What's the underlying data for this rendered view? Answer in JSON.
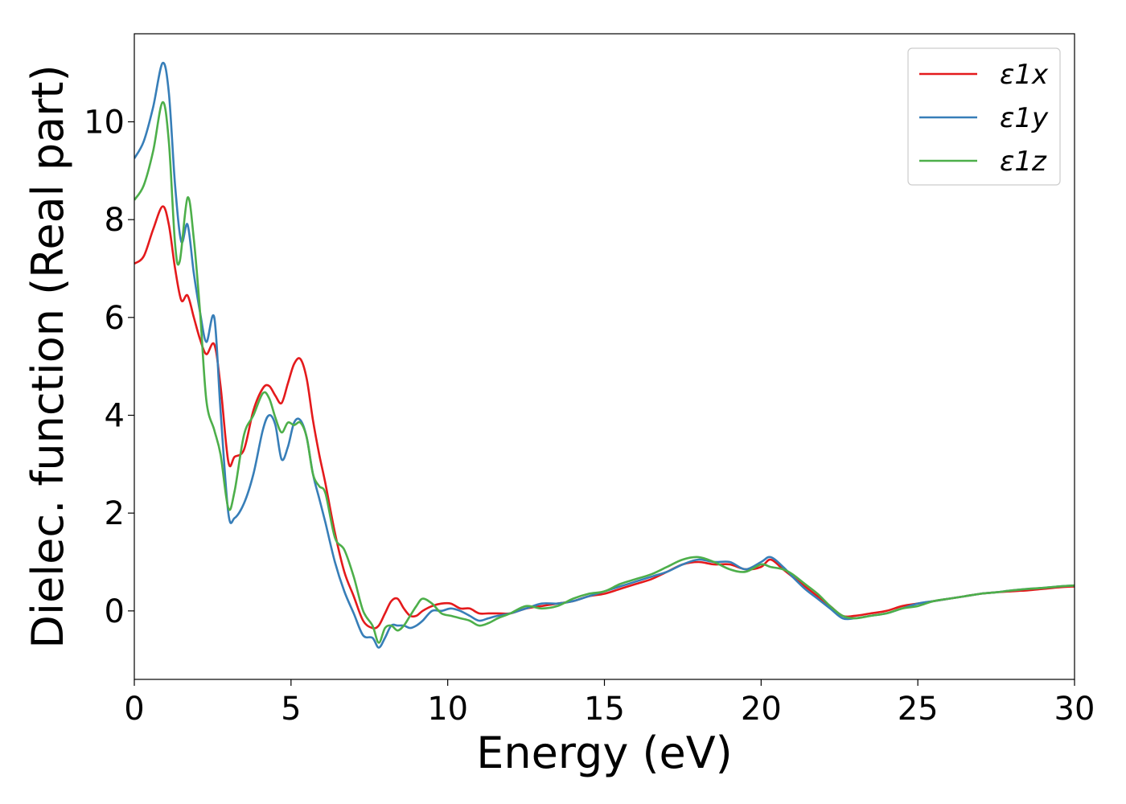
{
  "chart_data": {
    "type": "line",
    "xlabel": "Energy (eV)",
    "ylabel": "Dielec. function (Real part)",
    "xlim": [
      0,
      30
    ],
    "ylim": [
      -1.4,
      11.8
    ],
    "xticks": [
      0,
      5,
      10,
      15,
      20,
      25,
      30
    ],
    "yticks": [
      0,
      2,
      4,
      6,
      8,
      10
    ],
    "grid": false,
    "legend_position": "top-right",
    "series": [
      {
        "name": "ε1x",
        "color": "#e41a1c",
        "x": [
          0,
          0.3,
          0.6,
          0.9,
          1.1,
          1.3,
          1.5,
          1.7,
          1.9,
          2.1,
          2.3,
          2.55,
          2.75,
          3.0,
          3.2,
          3.5,
          3.8,
          4.1,
          4.3,
          4.5,
          4.7,
          4.9,
          5.1,
          5.3,
          5.5,
          5.7,
          5.9,
          6.1,
          6.4,
          6.7,
          7.0,
          7.3,
          7.6,
          7.8,
          8.0,
          8.2,
          8.4,
          8.6,
          8.8,
          9.0,
          9.2,
          9.5,
          9.8,
          10.1,
          10.4,
          10.7,
          11.0,
          11.3,
          11.6,
          12.0,
          12.5,
          13.0,
          13.5,
          14.0,
          14.5,
          15.0,
          15.5,
          16.0,
          16.5,
          17.0,
          17.5,
          18.0,
          18.5,
          19.0,
          19.5,
          20.0,
          20.3,
          20.7,
          21.0,
          21.4,
          21.8,
          22.2,
          22.6,
          23.0,
          23.5,
          24.0,
          24.5,
          25.0,
          25.5,
          26.0,
          26.5,
          27.0,
          27.5,
          28.0,
          28.5,
          29.0,
          29.5,
          30.0
        ],
        "y": [
          7.1,
          7.25,
          7.8,
          8.27,
          7.9,
          7.0,
          6.35,
          6.45,
          6.0,
          5.55,
          5.25,
          5.45,
          4.6,
          3.05,
          3.15,
          3.3,
          4.1,
          4.55,
          4.6,
          4.4,
          4.25,
          4.65,
          5.05,
          5.15,
          4.75,
          3.9,
          3.2,
          2.6,
          1.6,
          0.8,
          0.3,
          -0.2,
          -0.35,
          -0.3,
          -0.05,
          0.2,
          0.25,
          0.05,
          -0.1,
          -0.1,
          0.0,
          0.1,
          0.15,
          0.15,
          0.05,
          0.05,
          -0.05,
          -0.05,
          -0.05,
          -0.05,
          0.05,
          0.1,
          0.15,
          0.2,
          0.3,
          0.35,
          0.45,
          0.55,
          0.65,
          0.8,
          0.95,
          1.0,
          0.95,
          0.95,
          0.85,
          0.9,
          1.05,
          0.85,
          0.7,
          0.5,
          0.3,
          0.1,
          -0.1,
          -0.1,
          -0.05,
          0.0,
          0.1,
          0.15,
          0.2,
          0.25,
          0.3,
          0.35,
          0.38,
          0.4,
          0.42,
          0.45,
          0.48,
          0.5
        ]
      },
      {
        "name": "ε1y",
        "color": "#377eb8",
        "x": [
          0,
          0.3,
          0.6,
          0.9,
          1.1,
          1.3,
          1.5,
          1.7,
          1.9,
          2.1,
          2.3,
          2.55,
          2.75,
          3.0,
          3.2,
          3.5,
          3.8,
          4.1,
          4.3,
          4.5,
          4.7,
          4.9,
          5.1,
          5.3,
          5.5,
          5.7,
          5.9,
          6.1,
          6.4,
          6.7,
          7.0,
          7.3,
          7.6,
          7.8,
          8.0,
          8.2,
          8.4,
          8.6,
          8.8,
          9.0,
          9.2,
          9.5,
          9.8,
          10.1,
          10.4,
          10.7,
          11.0,
          11.3,
          11.6,
          12.0,
          12.5,
          13.0,
          13.5,
          14.0,
          14.5,
          15.0,
          15.5,
          16.0,
          16.5,
          17.0,
          17.5,
          18.0,
          18.5,
          19.0,
          19.5,
          20.0,
          20.3,
          20.7,
          21.0,
          21.4,
          21.8,
          22.2,
          22.6,
          23.0,
          23.5,
          24.0,
          24.5,
          25.0,
          25.5,
          26.0,
          26.5,
          27.0,
          27.5,
          28.0,
          28.5,
          29.0,
          29.5,
          30.0
        ],
        "y": [
          9.25,
          9.6,
          10.3,
          11.2,
          10.6,
          8.7,
          7.55,
          7.9,
          6.9,
          6.1,
          5.5,
          6.0,
          4.1,
          2.0,
          1.9,
          2.2,
          2.8,
          3.7,
          4.0,
          3.8,
          3.1,
          3.35,
          3.85,
          3.9,
          3.55,
          2.8,
          2.3,
          1.8,
          1.0,
          0.4,
          -0.05,
          -0.5,
          -0.55,
          -0.75,
          -0.55,
          -0.3,
          -0.3,
          -0.3,
          -0.35,
          -0.3,
          -0.2,
          0.0,
          0.0,
          0.05,
          0.0,
          -0.1,
          -0.2,
          -0.15,
          -0.1,
          -0.05,
          0.05,
          0.15,
          0.15,
          0.2,
          0.3,
          0.4,
          0.5,
          0.6,
          0.7,
          0.8,
          0.95,
          1.05,
          1.0,
          1.0,
          0.85,
          1.0,
          1.1,
          0.9,
          0.7,
          0.45,
          0.25,
          0.05,
          -0.15,
          -0.15,
          -0.1,
          -0.05,
          0.05,
          0.15,
          0.2,
          0.25,
          0.3,
          0.35,
          0.38,
          0.42,
          0.45,
          0.47,
          0.5,
          0.52
        ]
      },
      {
        "name": "ε1z",
        "color": "#4daf4a",
        "x": [
          0,
          0.3,
          0.6,
          0.9,
          1.1,
          1.3,
          1.45,
          1.7,
          1.9,
          2.1,
          2.3,
          2.55,
          2.75,
          3.0,
          3.2,
          3.5,
          3.8,
          4.1,
          4.3,
          4.5,
          4.7,
          4.9,
          5.1,
          5.3,
          5.5,
          5.7,
          5.9,
          6.1,
          6.4,
          6.7,
          7.0,
          7.3,
          7.6,
          7.8,
          8.0,
          8.2,
          8.4,
          8.6,
          8.8,
          9.0,
          9.2,
          9.5,
          9.8,
          10.1,
          10.4,
          10.7,
          11.0,
          11.3,
          11.6,
          12.0,
          12.5,
          13.0,
          13.5,
          14.0,
          14.5,
          15.0,
          15.5,
          16.0,
          16.5,
          17.0,
          17.5,
          18.0,
          18.5,
          19.0,
          19.5,
          20.0,
          20.3,
          20.7,
          21.0,
          21.4,
          21.8,
          22.2,
          22.6,
          23.0,
          23.5,
          24.0,
          24.5,
          25.0,
          25.5,
          26.0,
          26.5,
          27.0,
          27.5,
          28.0,
          28.5,
          29.0,
          29.5,
          30.0
        ],
        "y": [
          8.4,
          8.7,
          9.4,
          10.4,
          9.6,
          7.5,
          7.15,
          8.45,
          7.6,
          6.1,
          4.3,
          3.7,
          3.2,
          2.1,
          2.45,
          3.6,
          4.0,
          4.45,
          4.35,
          3.95,
          3.65,
          3.85,
          3.8,
          3.85,
          3.55,
          2.8,
          2.55,
          2.4,
          1.5,
          1.25,
          0.7,
          0.0,
          -0.3,
          -0.65,
          -0.35,
          -0.3,
          -0.4,
          -0.3,
          -0.1,
          0.1,
          0.25,
          0.15,
          -0.05,
          -0.1,
          -0.15,
          -0.2,
          -0.3,
          -0.25,
          -0.15,
          -0.05,
          0.1,
          0.05,
          0.1,
          0.25,
          0.35,
          0.4,
          0.55,
          0.65,
          0.75,
          0.9,
          1.05,
          1.1,
          1.0,
          0.85,
          0.8,
          0.95,
          0.9,
          0.85,
          0.75,
          0.55,
          0.35,
          0.1,
          -0.1,
          -0.15,
          -0.1,
          -0.05,
          0.05,
          0.1,
          0.2,
          0.25,
          0.3,
          0.35,
          0.38,
          0.42,
          0.45,
          0.47,
          0.5,
          0.52
        ]
      }
    ]
  }
}
